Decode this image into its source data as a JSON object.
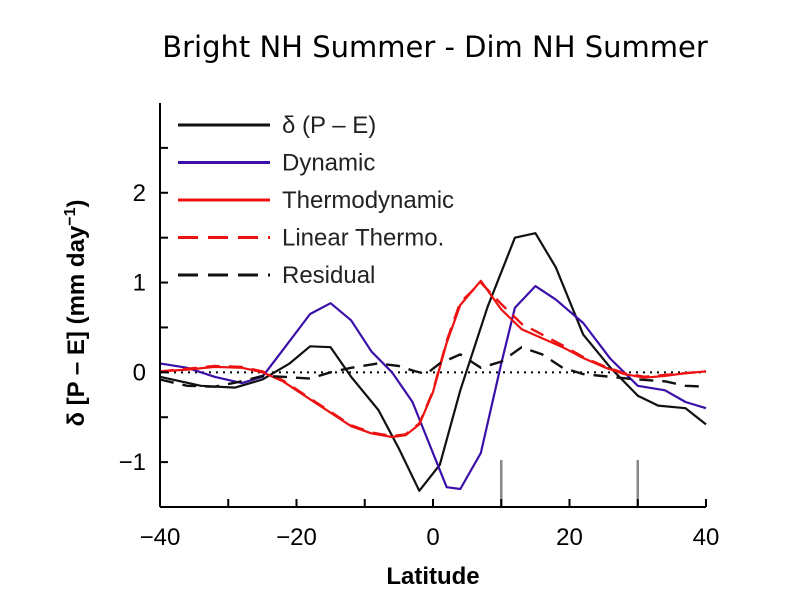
{
  "chart_data": {
    "type": "line",
    "title": "Bright NH Summer - Dim NH Summer",
    "xlabel": "Latitude",
    "ylabel": "δ [P – E] (mm day",
    "ylabel_sup": "−1",
    "ylabel_close": ")",
    "xlim": [
      -40,
      40
    ],
    "ylim": [
      -1.5,
      3
    ],
    "x_ticks": [
      -40,
      -20,
      0,
      20,
      40
    ],
    "x_tick_labels": [
      "−40",
      "−20",
      "0",
      "20",
      "40"
    ],
    "y_ticks": [
      -1,
      0,
      1,
      2
    ],
    "y_tick_labels": [
      "−1",
      "0",
      "1",
      "2"
    ],
    "zero_line": "dotted",
    "grid": false,
    "legend_position": "top-left",
    "markers": [
      10,
      30
    ],
    "series": [
      {
        "name": "δ (P – E)",
        "color": "#111111",
        "dash": "solid",
        "x": [
          -40,
          -34,
          -29,
          -25,
          -21,
          -18,
          -15,
          -12,
          -8,
          -5,
          -2,
          1,
          4,
          8,
          12,
          15,
          18,
          22,
          26,
          30,
          33,
          37,
          40
        ],
        "y": [
          -0.05,
          -0.15,
          -0.17,
          -0.08,
          0.1,
          0.29,
          0.28,
          -0.05,
          -0.42,
          -0.85,
          -1.32,
          -1.03,
          -0.2,
          0.73,
          1.5,
          1.55,
          1.17,
          0.42,
          0.05,
          -0.26,
          -0.37,
          -0.4,
          -0.58
        ]
      },
      {
        "name": "Dynamic",
        "color": "#3b10a8",
        "dash": "solid",
        "x": [
          -40,
          -36,
          -32,
          -28,
          -25,
          -22,
          -18,
          -15,
          -12,
          -9,
          -6,
          -3,
          0,
          2,
          4,
          7,
          10,
          12,
          15,
          18,
          22,
          26,
          30,
          34,
          37,
          40
        ],
        "y": [
          0.1,
          0.05,
          -0.05,
          -0.12,
          -0.05,
          0.25,
          0.65,
          0.77,
          0.58,
          0.23,
          0.0,
          -0.33,
          -0.9,
          -1.28,
          -1.3,
          -0.9,
          0.1,
          0.72,
          0.96,
          0.81,
          0.55,
          0.15,
          -0.15,
          -0.2,
          -0.33,
          -0.4
        ]
      },
      {
        "name": "Thermodynamic",
        "color": "#ee1111",
        "dash": "solid",
        "x": [
          -40,
          -36,
          -32,
          -28,
          -25,
          -22,
          -18,
          -15,
          -12,
          -9,
          -6,
          -4,
          -2,
          0,
          2,
          4,
          7,
          10,
          13,
          16,
          19,
          22,
          25,
          28,
          31,
          34,
          37,
          40
        ],
        "y": [
          0.01,
          0.03,
          0.06,
          0.05,
          0.0,
          -0.1,
          -0.3,
          -0.45,
          -0.6,
          -0.68,
          -0.72,
          -0.7,
          -0.58,
          -0.22,
          0.33,
          0.75,
          1.02,
          0.7,
          0.48,
          0.38,
          0.28,
          0.16,
          0.06,
          -0.02,
          -0.06,
          -0.04,
          -0.01,
          0.01
        ]
      },
      {
        "name": "Linear Thermo.",
        "color": "#ee1111",
        "dash": "dashed",
        "x": [
          -40,
          -36,
          -32,
          -28,
          -25,
          -22,
          -18,
          -15,
          -12,
          -9,
          -6,
          -4,
          -2,
          0,
          2,
          4,
          7,
          10,
          13,
          16,
          19,
          22,
          25,
          28,
          31,
          34,
          37,
          40
        ],
        "y": [
          0.01,
          0.04,
          0.07,
          0.06,
          0.01,
          -0.09,
          -0.29,
          -0.44,
          -0.59,
          -0.67,
          -0.71,
          -0.69,
          -0.57,
          -0.21,
          0.35,
          0.78,
          1.0,
          0.76,
          0.54,
          0.42,
          0.3,
          0.17,
          0.07,
          -0.01,
          -0.05,
          -0.03,
          -0.01,
          0.01
        ]
      },
      {
        "name": "Residual",
        "color": "#111111",
        "dash": "dashed",
        "x": [
          -40,
          -36,
          -32,
          -28,
          -25,
          -22,
          -18,
          -15,
          -12,
          -8,
          -5,
          -3,
          -1,
          1,
          4,
          7,
          10,
          13,
          16,
          19,
          22,
          26,
          30,
          34,
          37,
          40
        ],
        "y": [
          -0.08,
          -0.15,
          -0.16,
          -0.1,
          -0.04,
          -0.05,
          -0.07,
          0.0,
          0.05,
          0.1,
          0.07,
          0.02,
          -0.02,
          0.1,
          0.2,
          0.05,
          0.12,
          0.28,
          0.2,
          0.05,
          -0.02,
          -0.05,
          -0.08,
          -0.1,
          -0.15,
          -0.16
        ]
      }
    ]
  }
}
